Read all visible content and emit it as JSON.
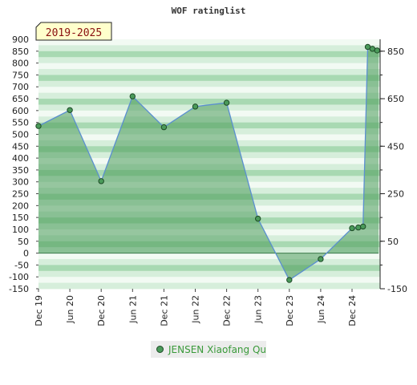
{
  "chart_data": {
    "type": "line",
    "title": "WOF ratinglist",
    "period_label": "2019-2025",
    "legend": {
      "position": "bottom",
      "items": [
        "JENSEN Xiaofang Qu"
      ]
    },
    "left_axis": {
      "ylim": [
        -150,
        900
      ],
      "ticks": [
        -150,
        -100,
        -50,
        0,
        50,
        100,
        150,
        200,
        250,
        300,
        350,
        400,
        450,
        500,
        550,
        600,
        650,
        700,
        750,
        800,
        850,
        900
      ]
    },
    "right_axis": {
      "ticks": [
        -150,
        50,
        250,
        450,
        650,
        850
      ]
    },
    "x_ticks": [
      "Dec 19",
      "Jun 20",
      "Dec 20",
      "Jun 21",
      "Dec 21",
      "Jun 22",
      "Dec 22",
      "Jun 23",
      "Dec 23",
      "Jun 24",
      "Dec 24"
    ],
    "series": [
      {
        "name": "JENSEN Xiaofang Qu",
        "color": "#4a9a5a",
        "line_color": "#5b8fd0",
        "points": [
          {
            "x": 0.0,
            "y": 535
          },
          {
            "x": 1.0,
            "y": 602
          },
          {
            "x": 2.0,
            "y": 303
          },
          {
            "x": 3.0,
            "y": 660
          },
          {
            "x": 4.0,
            "y": 530
          },
          {
            "x": 5.0,
            "y": 617
          },
          {
            "x": 6.0,
            "y": 633
          },
          {
            "x": 7.0,
            "y": 145
          },
          {
            "x": 8.0,
            "y": -113
          },
          {
            "x": 9.0,
            "y": -25
          },
          {
            "x": 10.0,
            "y": 105
          },
          {
            "x": 10.2,
            "y": 108
          },
          {
            "x": 10.35,
            "y": 112
          },
          {
            "x": 10.5,
            "y": 868
          },
          {
            "x": 10.65,
            "y": 860
          },
          {
            "x": 10.8,
            "y": 853
          }
        ]
      }
    ],
    "grid": false
  }
}
